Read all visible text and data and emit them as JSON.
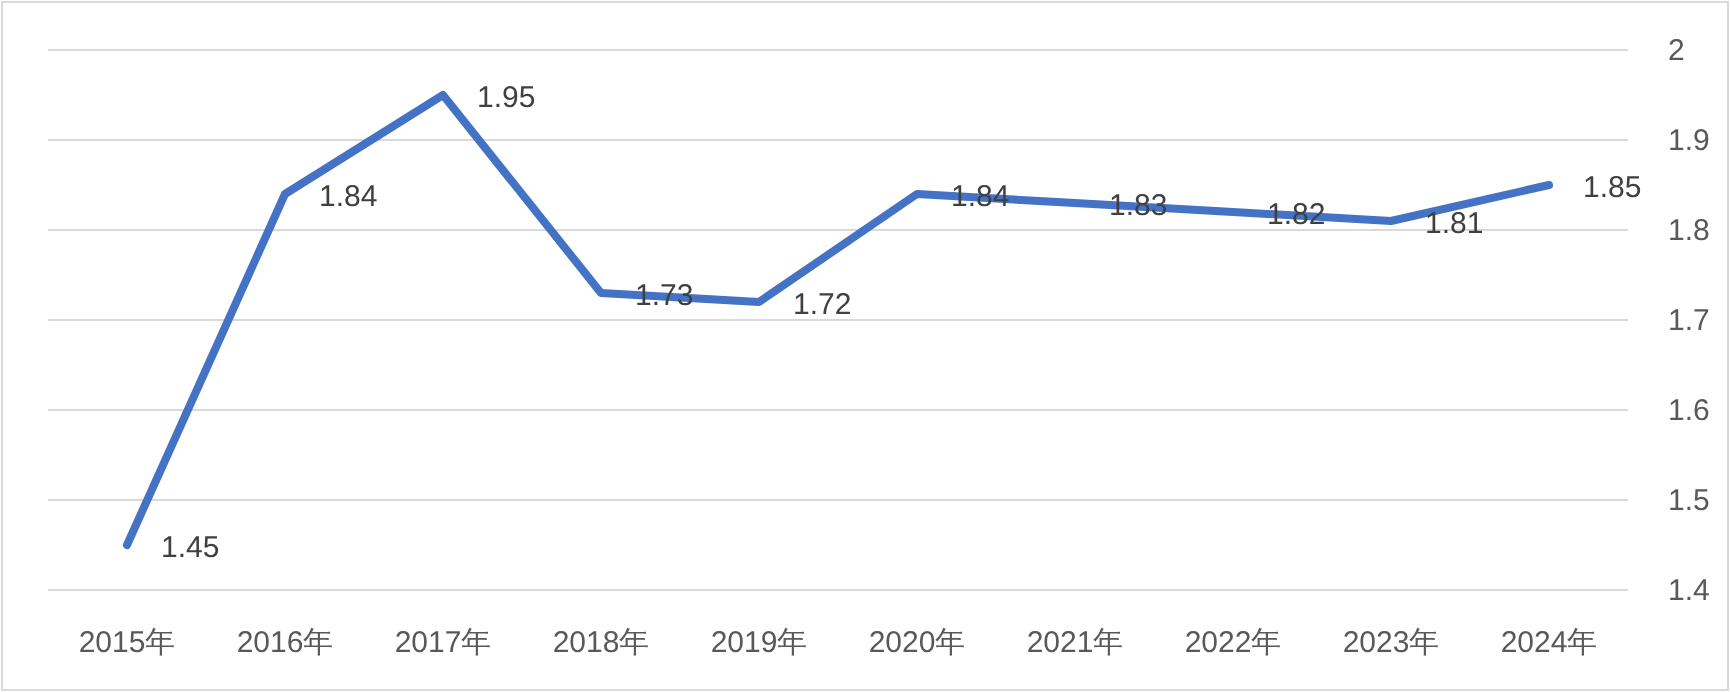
{
  "chart_data": {
    "type": "line",
    "categories": [
      "2015年",
      "2016年",
      "2017年",
      "2018年",
      "2019年",
      "2020年",
      "2021年",
      "2022年",
      "2023年",
      "2024年"
    ],
    "values": [
      1.45,
      1.84,
      1.95,
      1.73,
      1.72,
      1.84,
      1.83,
      1.82,
      1.81,
      1.85
    ],
    "color": "#4472c4",
    "ylim": [
      1.4,
      2
    ],
    "yticks": [
      1.4,
      1.5,
      1.6,
      1.7,
      1.8,
      1.9,
      2
    ],
    "grid": "y",
    "data_labels": true
  }
}
